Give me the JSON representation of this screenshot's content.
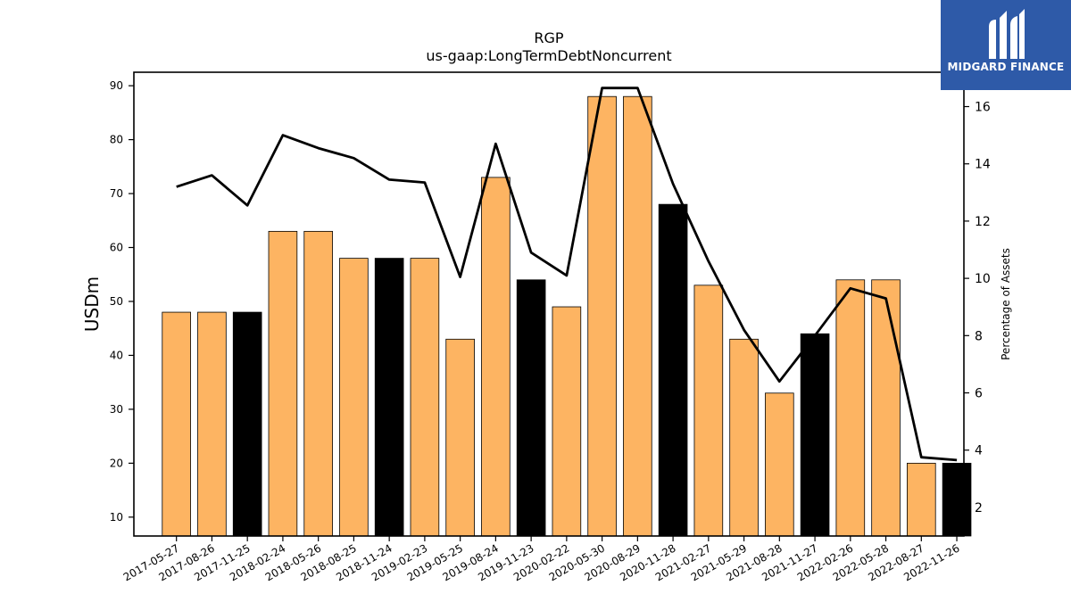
{
  "brand": {
    "name": "MIDGARD FINANCE"
  },
  "colors": {
    "bar_default": "#fdb462",
    "bar_highlight": "#000000",
    "line": "#000000"
  },
  "chart_data": {
    "type": "bar",
    "title": "RGP",
    "subtitle": "us-gaap:LongTermDebtNoncurrent",
    "ylabel": "USDm",
    "y2label": "Percentage of Assets",
    "ylim": [
      6.5,
      92.5
    ],
    "y2lim": [
      1.0,
      17.2
    ],
    "yticks": [
      10,
      20,
      30,
      40,
      50,
      60,
      70,
      80,
      90
    ],
    "y2ticks": [
      2,
      4,
      6,
      8,
      10,
      12,
      14,
      16
    ],
    "categories": [
      "2017-05-27",
      "2017-08-26",
      "2017-11-25",
      "2018-02-24",
      "2018-05-26",
      "2018-08-25",
      "2018-11-24",
      "2019-02-23",
      "2019-05-25",
      "2019-08-24",
      "2019-11-23",
      "2020-02-22",
      "2020-05-30",
      "2020-08-29",
      "2020-11-28",
      "2021-02-27",
      "2021-05-29",
      "2021-08-28",
      "2021-11-27",
      "2022-02-26",
      "2022-05-28",
      "2022-08-27",
      "2022-11-26"
    ],
    "series": [
      {
        "type": "bar",
        "axis": "left",
        "values": [
          48,
          48,
          48,
          63,
          63,
          58,
          58,
          58,
          43,
          73,
          54,
          49,
          88,
          88,
          68,
          53,
          43,
          33,
          44,
          54,
          54,
          20,
          20
        ],
        "highlight": [
          false,
          false,
          true,
          false,
          false,
          false,
          true,
          false,
          false,
          false,
          true,
          false,
          false,
          false,
          true,
          false,
          false,
          false,
          true,
          false,
          false,
          false,
          true
        ]
      },
      {
        "type": "line",
        "axis": "right",
        "values": [
          13.2,
          13.6,
          12.55,
          15.0,
          14.55,
          14.2,
          13.45,
          13.35,
          10.05,
          14.7,
          10.9,
          10.1,
          16.65,
          16.65,
          13.3,
          10.6,
          8.2,
          6.4,
          8.0,
          9.65,
          9.3,
          3.75,
          3.65
        ]
      }
    ],
    "grid": false,
    "legend": "none"
  }
}
